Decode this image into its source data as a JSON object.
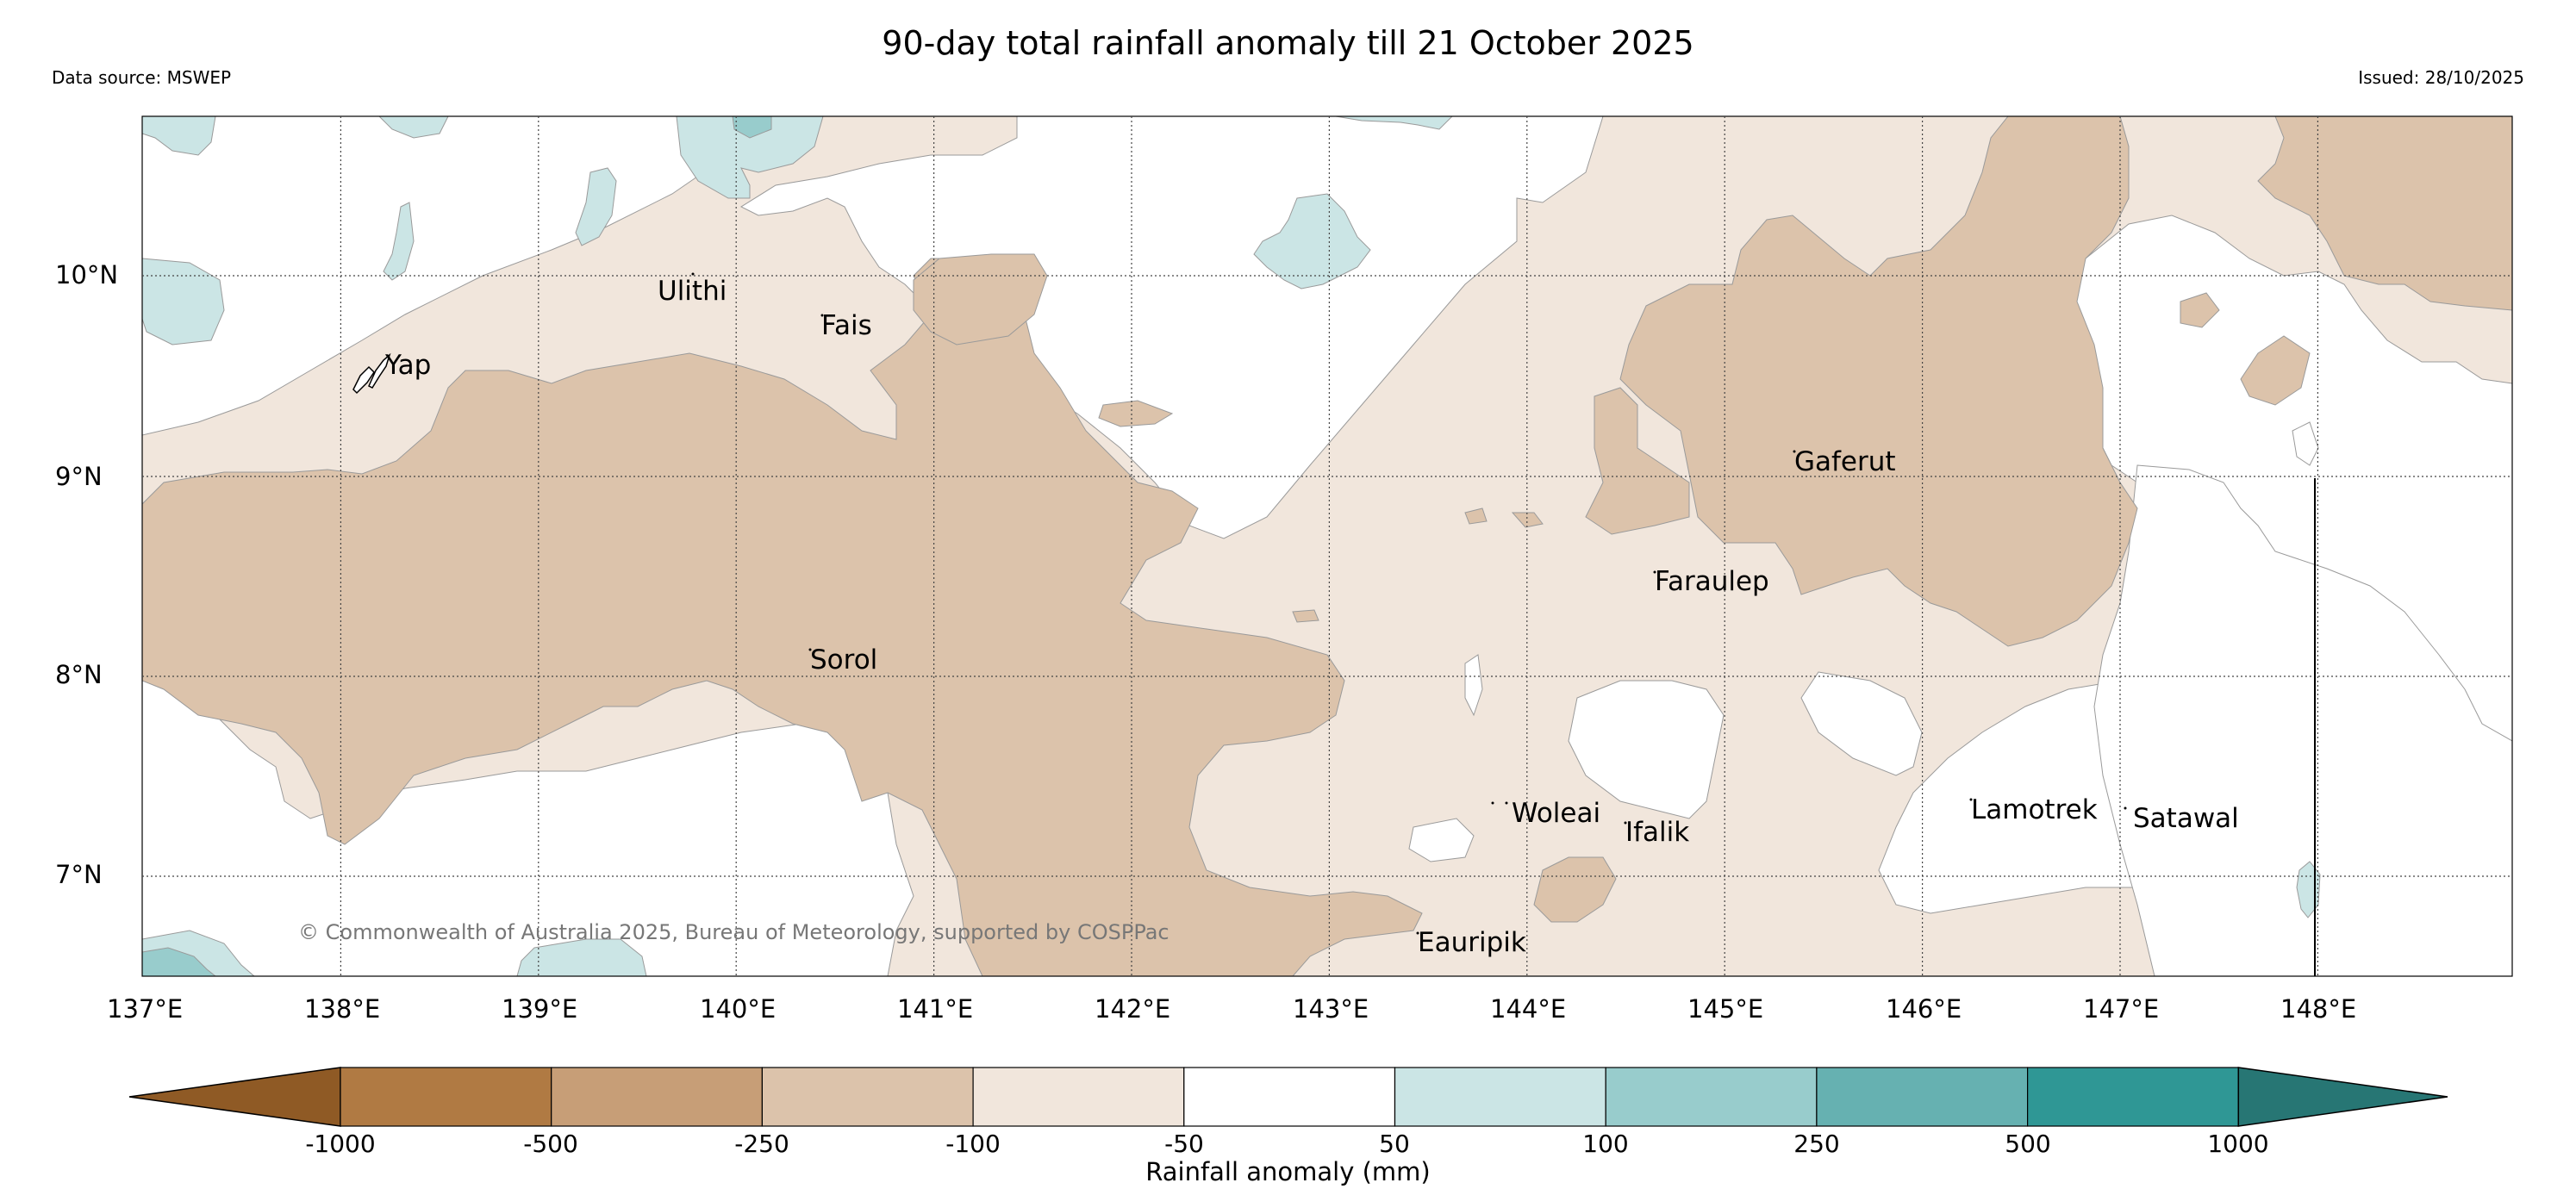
{
  "header": {
    "title": "90-day total rainfall anomaly till 21 October 2025",
    "data_source": "Data source: MSWEP",
    "issued": "Issued: 28/10/2025"
  },
  "map": {
    "lat_ticks": [
      "10°N",
      "9°N",
      "8°N",
      "7°N"
    ],
    "lon_ticks": [
      "137°E",
      "138°E",
      "139°E",
      "140°E",
      "141°E",
      "142°E",
      "143°E",
      "144°E",
      "145°E",
      "146°E",
      "147°E",
      "148°E"
    ],
    "places": {
      "yap": "Yap",
      "ulithi": "Ulithi",
      "fais": "Fais",
      "gaferut": "Gaferut",
      "faraulep": "Faraulep",
      "sorol": "Sorol",
      "woleai": "Woleai",
      "ifalik": "Ifalik",
      "lamotrek": "Lamotrek",
      "satawal": "Satawal",
      "eauripik": "Eauripik"
    },
    "credit": "© Commonwealth of Australia 2025, Bureau of Meteorology, supported by COSPPac"
  },
  "colorbar": {
    "title": "Rainfall anomaly (mm)",
    "ticks": [
      "-1000",
      "-500",
      "-250",
      "-100",
      "-50",
      "50",
      "100",
      "250",
      "500",
      "1000"
    ],
    "colors": [
      "#8f5a25",
      "#b07a43",
      "#c79e77",
      "#dcc3ab",
      "#f1e6dc",
      "#ffffff",
      "#cbe5e5",
      "#98cccc",
      "#66b1b1",
      "#2f9795",
      "#277674"
    ]
  }
}
